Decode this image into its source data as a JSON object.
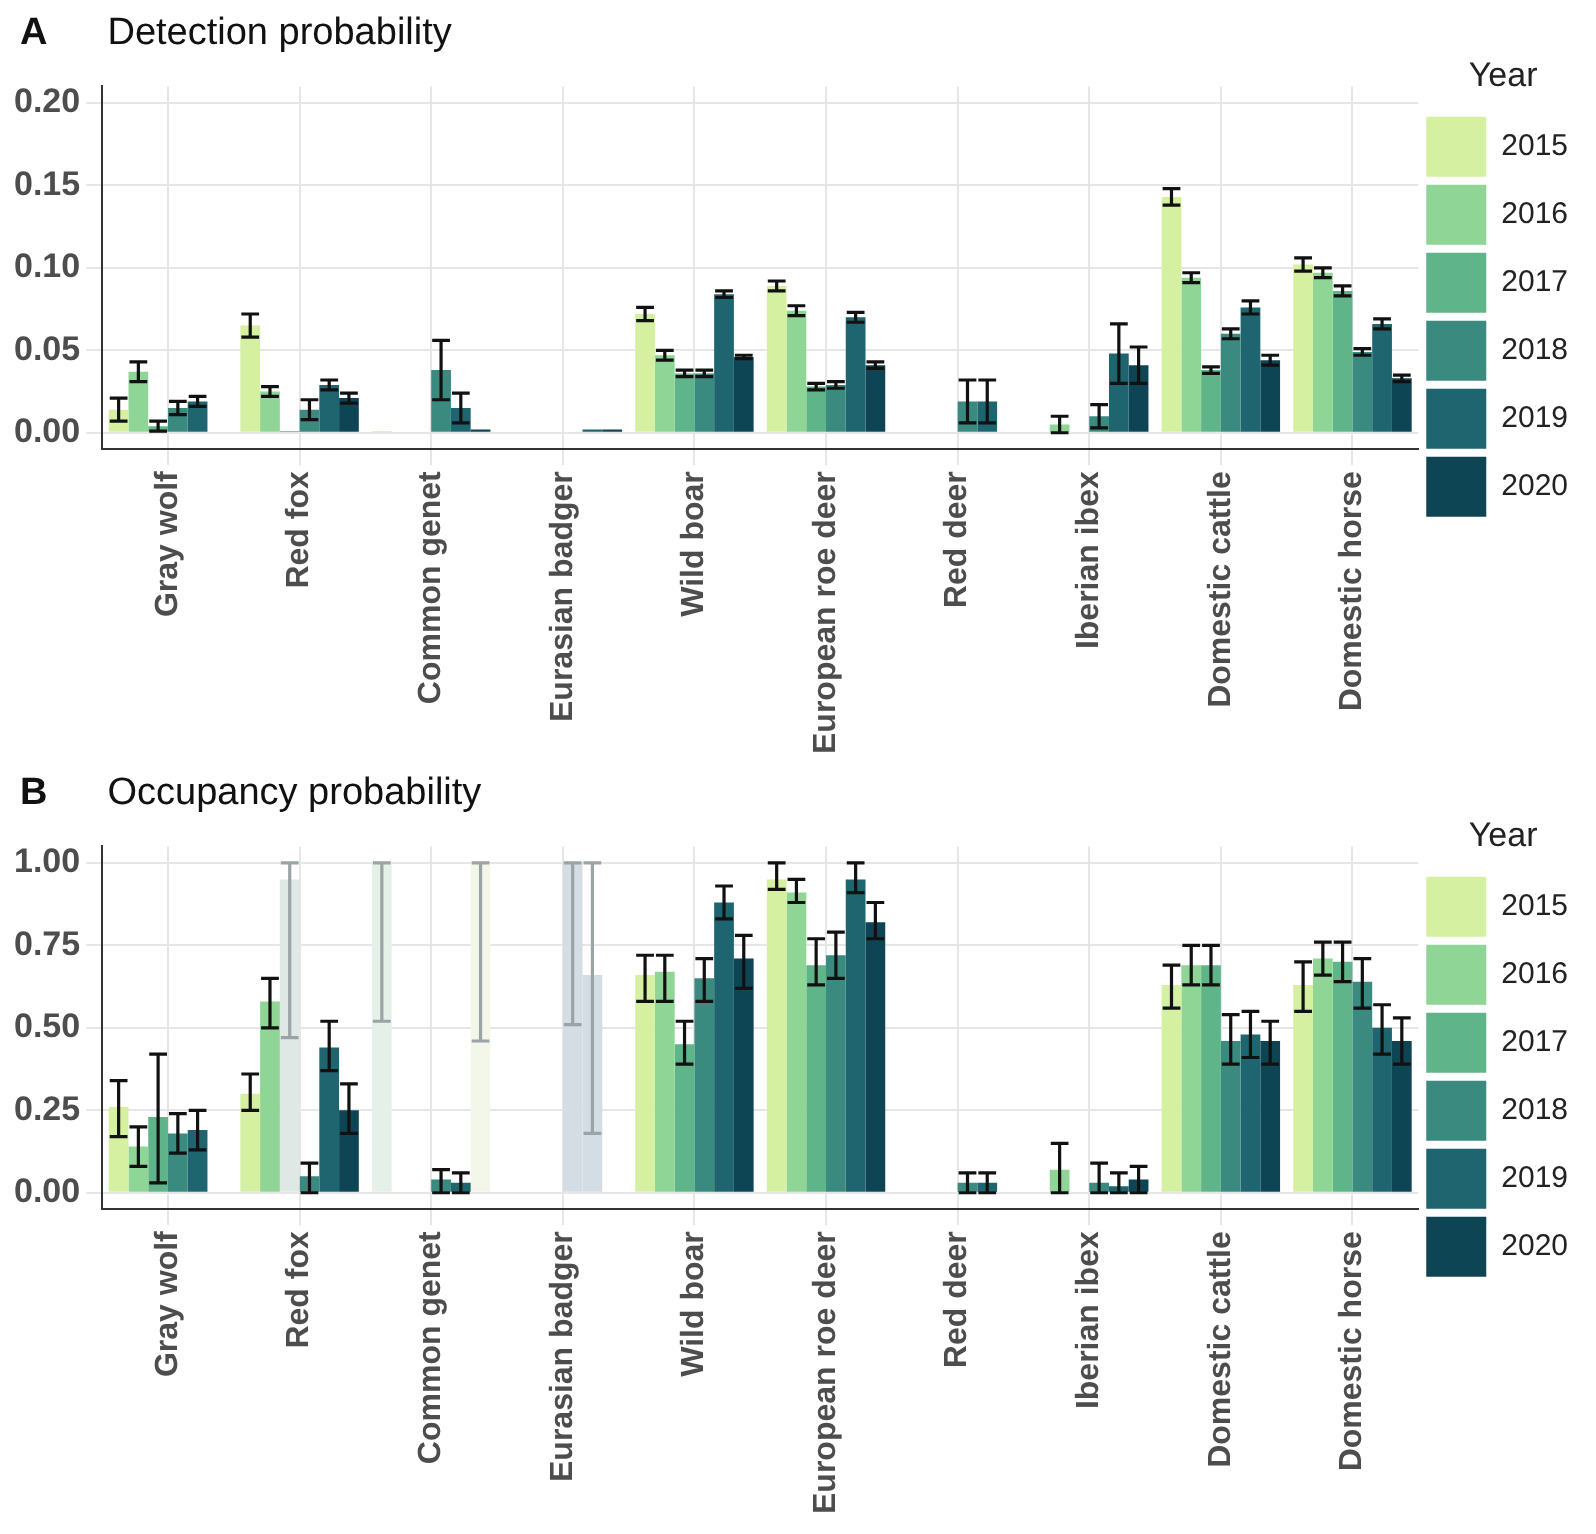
{
  "chart_data": [
    {
      "type": "bar",
      "title": "Detection probability",
      "annotations": [
        "A"
      ],
      "legend_title": "Year",
      "legend": "right",
      "grid": true,
      "categories": [
        "Gray wolf",
        "Red fox",
        "Common genet",
        "Eurasian badger",
        "Wild boar",
        "European roe deer",
        "Red deer",
        "Iberian ibex",
        "Domestic cattle",
        "Domestic horse"
      ],
      "ylim": [
        -0.01,
        0.21
      ],
      "yticks": [
        {
          "value": 0,
          "label": "0.00"
        },
        {
          "value": 0.05,
          "label": "0.05"
        },
        {
          "value": 0.1,
          "label": "0.10"
        },
        {
          "value": 0.15,
          "label": "0.15"
        },
        {
          "value": 0.2,
          "label": "0.20"
        }
      ],
      "series": [
        {
          "name": "2015",
          "color": "#d4f0a0",
          "values": [
            0.014,
            0.065,
            0.001,
            null,
            0.072,
            0.089,
            null,
            null,
            0.143,
            0.102
          ],
          "errors": [
            0.007,
            0.007,
            null,
            null,
            0.004,
            0.003,
            null,
            null,
            0.005,
            0.004
          ]
        },
        {
          "name": "2016",
          "color": "#8fd595",
          "values": [
            0.037,
            0.025,
            null,
            null,
            0.047,
            0.074,
            null,
            0.005,
            0.094,
            0.097
          ],
          "errors": [
            0.006,
            0.003,
            null,
            null,
            0.003,
            0.003,
            null,
            0.005,
            0.003,
            0.003
          ]
        },
        {
          "name": "2017",
          "color": "#5fb48a",
          "values": [
            0.004,
            0.001,
            null,
            null,
            0.036,
            0.028,
            null,
            null,
            0.038,
            0.086
          ],
          "errors": [
            0.003,
            null,
            null,
            null,
            0.002,
            0.002,
            null,
            null,
            0.002,
            0.003
          ]
        },
        {
          "name": "2018",
          "color": "#3a8a80",
          "values": [
            0.015,
            0.014,
            0.038,
            null,
            0.036,
            0.029,
            0.019,
            0.01,
            0.06,
            0.049
          ],
          "errors": [
            0.004,
            0.006,
            0.018,
            null,
            0.002,
            0.002,
            0.013,
            0.007,
            0.003,
            0.002
          ]
        },
        {
          "name": "2019",
          "color": "#1e6570",
          "values": [
            0.019,
            0.029,
            0.015,
            0.002,
            0.084,
            0.07,
            0.019,
            0.048,
            0.076,
            0.066
          ],
          "errors": [
            0.003,
            0.003,
            0.009,
            null,
            0.002,
            0.003,
            0.013,
            0.018,
            0.004,
            0.003
          ]
        },
        {
          "name": "2020",
          "color": "#0e4555",
          "values": [
            null,
            0.021,
            0.002,
            0.002,
            0.046,
            0.041,
            null,
            0.041,
            0.044,
            0.033
          ],
          "errors": [
            null,
            0.003,
            null,
            null,
            0.001,
            0.002,
            null,
            0.011,
            0.003,
            0.002
          ]
        }
      ]
    },
    {
      "type": "bar",
      "title": "Occupancy probability",
      "annotations": [
        "B"
      ],
      "legend_title": "Year",
      "legend": "right",
      "grid": true,
      "categories": [
        "Gray wolf",
        "Red fox",
        "Common genet",
        "Eurasian badger",
        "Wild boar",
        "European roe deer",
        "Red deer",
        "Iberian ibex",
        "Domestic cattle",
        "Domestic horse"
      ],
      "ylim": [
        -0.05,
        1.05
      ],
      "yticks": [
        {
          "value": 0,
          "label": "0.00"
        },
        {
          "value": 0.25,
          "label": "0.25"
        },
        {
          "value": 0.5,
          "label": "0.50"
        },
        {
          "value": 0.75,
          "label": "0.75"
        },
        {
          "value": 1,
          "label": "1.00"
        }
      ],
      "series": [
        {
          "name": "2015",
          "color": "#d4f0a0",
          "colors": [
            "#d4f0a0",
            "#d4f0a0",
            "#e5f1e8",
            "#d4f0a0",
            "#d4f0a0",
            "#d4f0a0",
            "#d4f0a0",
            "#d4f0a0",
            "#d4f0a0",
            "#d4f0a0"
          ],
          "values": [
            0.26,
            0.3,
            1,
            null,
            0.66,
            0.95,
            null,
            null,
            0.63,
            0.63
          ],
          "errors": [
            [
              0.17,
              0.34
            ],
            [
              0.25,
              0.36
            ],
            [
              0.52,
              1
            ],
            null,
            [
              0.58,
              0.72
            ],
            [
              0.92,
              1
            ],
            null,
            null,
            [
              0.56,
              0.69
            ],
            [
              0.55,
              0.7
            ]
          ]
        },
        {
          "name": "2016",
          "color": "#8fd595",
          "values": [
            0.14,
            0.58,
            null,
            null,
            0.67,
            0.91,
            null,
            0.07,
            0.69,
            0.71
          ],
          "errors": [
            [
              0.08,
              0.2
            ],
            [
              0.5,
              0.65
            ],
            null,
            null,
            [
              0.58,
              0.72
            ],
            [
              0.88,
              0.95
            ],
            null,
            [
              0,
              0.15
            ],
            [
              0.63,
              0.75
            ],
            [
              0.66,
              0.76
            ]
          ]
        },
        {
          "name": "2017",
          "color": "#5fb48a",
          "colors": [
            "#5fb48a",
            "#dfe8e5",
            "#5fb48a",
            "#5fb48a",
            "#5fb48a",
            "#5fb48a",
            "#5fb48a",
            "#5fb48a",
            "#5fb48a",
            "#5fb48a"
          ],
          "values": [
            0.23,
            0.95,
            null,
            null,
            0.45,
            0.69,
            null,
            null,
            0.69,
            0.7
          ],
          "errors": [
            [
              0.03,
              0.42
            ],
            [
              0.47,
              1
            ],
            null,
            null,
            [
              0.39,
              0.52
            ],
            [
              0.63,
              0.77
            ],
            null,
            null,
            [
              0.63,
              0.75
            ],
            [
              0.64,
              0.76
            ]
          ]
        },
        {
          "name": "2018",
          "color": "#3a8a80",
          "colors": [
            "#3a8a80",
            "#3a8a80",
            "#3a8a80",
            "#d3dde3",
            "#3a8a80",
            "#3a8a80",
            "#3a8a80",
            "#3a8a80",
            "#3a8a80",
            "#3a8a80"
          ],
          "values": [
            0.18,
            0.05,
            0.04,
            1,
            0.65,
            0.72,
            0.03,
            0.03,
            0.46,
            0.64
          ],
          "errors": [
            [
              0.12,
              0.24
            ],
            [
              0,
              0.09
            ],
            [
              0,
              0.07
            ],
            [
              0.51,
              1
            ],
            [
              0.58,
              0.71
            ],
            [
              0.65,
              0.79
            ],
            [
              0,
              0.06
            ],
            [
              0,
              0.09
            ],
            [
              0.39,
              0.54
            ],
            [
              0.56,
              0.71
            ]
          ]
        },
        {
          "name": "2019",
          "color": "#1e6570",
          "colors": [
            "#1e6570",
            "#1e6570",
            "#1e6570",
            "#d3dde3",
            "#1e6570",
            "#1e6570",
            "#1e6570",
            "#1e6570",
            "#1e6570",
            "#1e6570"
          ],
          "values": [
            0.19,
            0.44,
            0.03,
            0.66,
            0.88,
            0.95,
            0.03,
            0.02,
            0.48,
            0.5
          ],
          "errors": [
            [
              0.13,
              0.25
            ],
            [
              0.37,
              0.52
            ],
            [
              0,
              0.06
            ],
            [
              0.18,
              1
            ],
            [
              0.83,
              0.93
            ],
            [
              0.91,
              1
            ],
            [
              0,
              0.06
            ],
            [
              0,
              0.06
            ],
            [
              0.41,
              0.55
            ],
            [
              0.42,
              0.57
            ]
          ]
        },
        {
          "name": "2020",
          "color": "#0e4555",
          "colors": [
            "#0e4555",
            "#0e4555",
            "#f2f7ea",
            "#0e4555",
            "#0e4555",
            "#0e4555",
            "#0e4555",
            "#0e4555",
            "#0e4555",
            "#0e4555"
          ],
          "values": [
            null,
            0.25,
            1,
            null,
            0.71,
            0.82,
            null,
            0.04,
            0.46,
            0.46
          ],
          "errors": [
            null,
            [
              0.18,
              0.33
            ],
            [
              0.46,
              1
            ],
            null,
            [
              0.62,
              0.78
            ],
            [
              0.77,
              0.88
            ],
            null,
            [
              0,
              0.08
            ],
            [
              0.39,
              0.52
            ],
            [
              0.39,
              0.53
            ]
          ]
        }
      ]
    }
  ]
}
